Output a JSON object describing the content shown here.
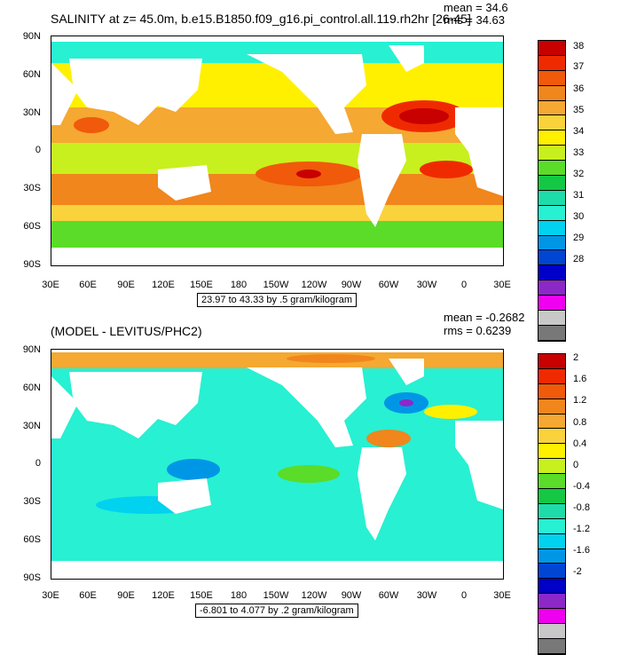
{
  "top": {
    "title": "SALINITY at z=  45.0m, b.e15.B1850.f09_g16.pi_control.all.119.rh2hr [26-45]",
    "mean_label": "mean = 34.6",
    "rms_label": "rms = 34.63",
    "range_label": "23.97 to 43.33 by .5 gram/kilogram",
    "lat_ticks": [
      "90N",
      "60N",
      "30N",
      "0",
      "30S",
      "60S",
      "90S"
    ],
    "lon_ticks": [
      "30E",
      "60E",
      "90E",
      "120E",
      "150E",
      "180",
      "150W",
      "120W",
      "90W",
      "60W",
      "30W",
      "0",
      "30E"
    ],
    "colorbar_labels": [
      "38",
      "37",
      "36",
      "35",
      "34",
      "33",
      "32",
      "31",
      "30",
      "29",
      "28"
    ],
    "colorbar_colors": [
      "#c80000",
      "#f02a00",
      "#f05a0a",
      "#f0861c",
      "#f5a832",
      "#fad23c",
      "#fff000",
      "#c8f01e",
      "#5adc28",
      "#14c846",
      "#1edcaa",
      "#28f0d2",
      "#00d2f0",
      "#0096e6",
      "#0046d2",
      "#0000c8",
      "#8c28c8",
      "#f000f0",
      "#c8c8c8",
      "#787878"
    ]
  },
  "bottom": {
    "title": "(MODEL - LEVITUS/PHC2)",
    "mean_label": "mean = -0.2682",
    "rms_label": "rms = 0.6239",
    "range_label": "-6.801 to 4.077 by .2 gram/kilogram",
    "lat_ticks": [
      "90N",
      "60N",
      "30N",
      "0",
      "30S",
      "60S",
      "90S"
    ],
    "lon_ticks": [
      "30E",
      "60E",
      "90E",
      "120E",
      "150E",
      "180",
      "150W",
      "120W",
      "90W",
      "60W",
      "30W",
      "0",
      "30E"
    ],
    "colorbar_labels": [
      "2",
      "1.6",
      "1.2",
      "0.8",
      "0.4",
      "0",
      "-0.4",
      "-0.8",
      "-1.2",
      "-1.6",
      "-2"
    ],
    "colorbar_colors": [
      "#c80000",
      "#f02a00",
      "#f05a0a",
      "#f0861c",
      "#f5a832",
      "#fad23c",
      "#fff000",
      "#c8f01e",
      "#5adc28",
      "#14c846",
      "#1edcaa",
      "#28f0d2",
      "#00d2f0",
      "#0096e6",
      "#0046d2",
      "#0000c8",
      "#8c28c8",
      "#f000f0",
      "#c8c8c8",
      "#787878"
    ]
  }
}
